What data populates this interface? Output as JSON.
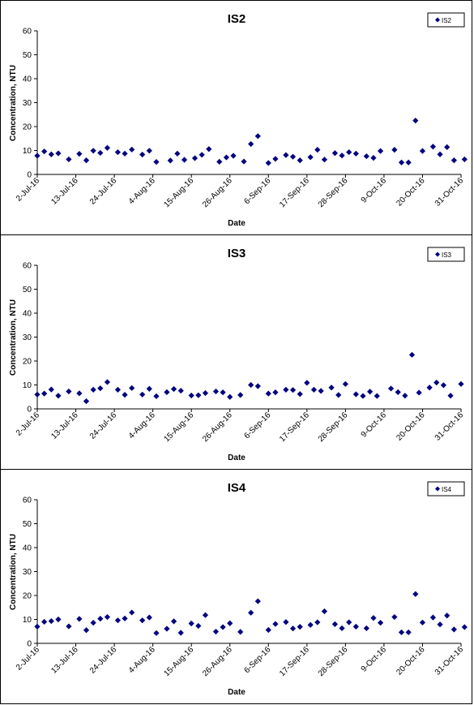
{
  "chart_data": [
    {
      "type": "scatter",
      "title": "IS2",
      "xlabel": "Date",
      "ylabel": "Concentration, NTU",
      "ylim": [
        0,
        60
      ],
      "yticks": [
        "0",
        "10",
        "20",
        "30",
        "40",
        "50",
        "60"
      ],
      "xlim": [
        "2016-07-02",
        "2016-10-31"
      ],
      "xticks": [
        "2-Jul-16",
        "13-Jul-16",
        "24-Jul-16",
        "4-Aug-16",
        "15-Aug-16",
        "26-Aug-16",
        "6-Sep-16",
        "17-Sep-16",
        "28-Sep-16",
        "9-Oct-16",
        "20-Oct-16",
        "31-Oct-16"
      ],
      "grid": false,
      "legend": "top-right",
      "marker_color": "#000080",
      "series": [
        {
          "name": "IS2",
          "points": [
            [
              "2016-07-02",
              7.8
            ],
            [
              "2016-07-04",
              9.6
            ],
            [
              "2016-07-06",
              8.4
            ],
            [
              "2016-07-08",
              8.8
            ],
            [
              "2016-07-11",
              6.3
            ],
            [
              "2016-07-14",
              8.6
            ],
            [
              "2016-07-16",
              5.9
            ],
            [
              "2016-07-18",
              9.9
            ],
            [
              "2016-07-20",
              9.0
            ],
            [
              "2016-07-22",
              11.1
            ],
            [
              "2016-07-25",
              9.3
            ],
            [
              "2016-07-27",
              8.7
            ],
            [
              "2016-07-29",
              10.4
            ],
            [
              "2016-08-01",
              8.3
            ],
            [
              "2016-08-03",
              9.9
            ],
            [
              "2016-08-05",
              5.2
            ],
            [
              "2016-08-09",
              5.8
            ],
            [
              "2016-08-11",
              8.7
            ],
            [
              "2016-08-13",
              6.1
            ],
            [
              "2016-08-16",
              6.8
            ],
            [
              "2016-08-18",
              8.2
            ],
            [
              "2016-08-20",
              10.6
            ],
            [
              "2016-08-23",
              5.3
            ],
            [
              "2016-08-25",
              7.1
            ],
            [
              "2016-08-27",
              7.8
            ],
            [
              "2016-08-30",
              5.4
            ],
            [
              "2016-09-01",
              12.7
            ],
            [
              "2016-09-03",
              16.0
            ],
            [
              "2016-09-06",
              4.8
            ],
            [
              "2016-09-08",
              6.5
            ],
            [
              "2016-09-11",
              8.1
            ],
            [
              "2016-09-13",
              7.4
            ],
            [
              "2016-09-15",
              5.9
            ],
            [
              "2016-09-18",
              7.2
            ],
            [
              "2016-09-20",
              10.3
            ],
            [
              "2016-09-22",
              6.2
            ],
            [
              "2016-09-25",
              8.9
            ],
            [
              "2016-09-27",
              7.9
            ],
            [
              "2016-09-29",
              9.3
            ],
            [
              "2016-10-01",
              8.7
            ],
            [
              "2016-10-04",
              7.6
            ],
            [
              "2016-10-06",
              6.9
            ],
            [
              "2016-10-08",
              9.8
            ],
            [
              "2016-10-12",
              10.3
            ],
            [
              "2016-10-14",
              5.0
            ],
            [
              "2016-10-16",
              5.0
            ],
            [
              "2016-10-18",
              22.5
            ],
            [
              "2016-10-20",
              9.8
            ],
            [
              "2016-10-23",
              11.6
            ],
            [
              "2016-10-25",
              8.4
            ],
            [
              "2016-10-27",
              11.4
            ],
            [
              "2016-10-29",
              5.9
            ],
            [
              "2016-11-01",
              6.3
            ]
          ]
        }
      ]
    },
    {
      "type": "scatter",
      "title": "IS3",
      "xlabel": "Date",
      "ylabel": "Concentration, NTU",
      "ylim": [
        0,
        60
      ],
      "yticks": [
        "0",
        "10",
        "20",
        "30",
        "40",
        "50",
        "60"
      ],
      "xlim": [
        "2016-07-02",
        "2016-10-31"
      ],
      "xticks": [
        "2-Jul-16",
        "13-Jul-16",
        "24-Jul-16",
        "4-Aug-16",
        "15-Aug-16",
        "26-Aug-16",
        "6-Sep-16",
        "17-Sep-16",
        "28-Sep-16",
        "9-Oct-16",
        "20-Oct-16",
        "31-Oct-16"
      ],
      "grid": false,
      "legend": "top-right",
      "marker_color": "#000080",
      "series": [
        {
          "name": "IS3",
          "points": [
            [
              "2016-07-02",
              6.0
            ],
            [
              "2016-07-04",
              6.4
            ],
            [
              "2016-07-06",
              8.1
            ],
            [
              "2016-07-08",
              5.5
            ],
            [
              "2016-07-11",
              7.3
            ],
            [
              "2016-07-14",
              6.5
            ],
            [
              "2016-07-16",
              3.2
            ],
            [
              "2016-07-18",
              8.0
            ],
            [
              "2016-07-20",
              8.6
            ],
            [
              "2016-07-22",
              11.2
            ],
            [
              "2016-07-25",
              8.0
            ],
            [
              "2016-07-27",
              5.9
            ],
            [
              "2016-07-29",
              8.7
            ],
            [
              "2016-08-01",
              6.0
            ],
            [
              "2016-08-03",
              8.4
            ],
            [
              "2016-08-05",
              5.3
            ],
            [
              "2016-08-08",
              7.0
            ],
            [
              "2016-08-10",
              8.3
            ],
            [
              "2016-08-12",
              7.6
            ],
            [
              "2016-08-15",
              5.6
            ],
            [
              "2016-08-17",
              5.7
            ],
            [
              "2016-08-19",
              6.6
            ],
            [
              "2016-08-22",
              7.3
            ],
            [
              "2016-08-24",
              6.9
            ],
            [
              "2016-08-26",
              5.0
            ],
            [
              "2016-08-29",
              5.8
            ],
            [
              "2016-09-01",
              10.0
            ],
            [
              "2016-09-03",
              9.5
            ],
            [
              "2016-09-06",
              6.4
            ],
            [
              "2016-09-08",
              6.9
            ],
            [
              "2016-09-11",
              8.0
            ],
            [
              "2016-09-13",
              7.9
            ],
            [
              "2016-09-15",
              6.2
            ],
            [
              "2016-09-17",
              10.9
            ],
            [
              "2016-09-19",
              8.0
            ],
            [
              "2016-09-21",
              7.5
            ],
            [
              "2016-09-24",
              8.9
            ],
            [
              "2016-09-26",
              5.8
            ],
            [
              "2016-09-28",
              10.4
            ],
            [
              "2016-10-01",
              6.1
            ],
            [
              "2016-10-03",
              5.4
            ],
            [
              "2016-10-05",
              7.2
            ],
            [
              "2016-10-07",
              5.4
            ],
            [
              "2016-10-11",
              8.5
            ],
            [
              "2016-10-13",
              7.0
            ],
            [
              "2016-10-15",
              5.5
            ],
            [
              "2016-10-17",
              22.6
            ],
            [
              "2016-10-19",
              6.8
            ],
            [
              "2016-10-22",
              8.9
            ],
            [
              "2016-10-24",
              11.0
            ],
            [
              "2016-10-26",
              9.9
            ],
            [
              "2016-10-28",
              5.5
            ],
            [
              "2016-10-31",
              10.4
            ]
          ]
        }
      ]
    },
    {
      "type": "scatter",
      "title": "IS4",
      "xlabel": "Date",
      "ylabel": "Concentration, NTU",
      "ylim": [
        0,
        60
      ],
      "yticks": [
        "0",
        "10",
        "20",
        "30",
        "40",
        "50",
        "60"
      ],
      "xlim": [
        "2016-07-02",
        "2016-10-31"
      ],
      "xticks": [
        "2-Jul-16",
        "13-Jul-16",
        "24-Jul-16",
        "4-Aug-16",
        "15-Aug-16",
        "26-Aug-16",
        "6-Sep-16",
        "17-Sep-16",
        "28-Sep-16",
        "9-Oct-16",
        "20-Oct-16",
        "31-Oct-16"
      ],
      "grid": false,
      "legend": "top-right",
      "marker_color": "#000080",
      "series": [
        {
          "name": "IS4",
          "points": [
            [
              "2016-07-02",
              7.0
            ],
            [
              "2016-07-04",
              9.0
            ],
            [
              "2016-07-06",
              9.3
            ],
            [
              "2016-07-08",
              10.0
            ],
            [
              "2016-07-11",
              7.1
            ],
            [
              "2016-07-14",
              10.2
            ],
            [
              "2016-07-16",
              5.5
            ],
            [
              "2016-07-18",
              8.6
            ],
            [
              "2016-07-20",
              10.3
            ],
            [
              "2016-07-22",
              11.0
            ],
            [
              "2016-07-25",
              9.6
            ],
            [
              "2016-07-27",
              10.4
            ],
            [
              "2016-07-29",
              12.9
            ],
            [
              "2016-08-01",
              9.6
            ],
            [
              "2016-08-03",
              10.8
            ],
            [
              "2016-08-05",
              4.3
            ],
            [
              "2016-08-08",
              6.1
            ],
            [
              "2016-08-10",
              9.2
            ],
            [
              "2016-08-12",
              4.4
            ],
            [
              "2016-08-15",
              8.3
            ],
            [
              "2016-08-17",
              7.3
            ],
            [
              "2016-08-19",
              11.8
            ],
            [
              "2016-08-22",
              4.9
            ],
            [
              "2016-08-24",
              6.8
            ],
            [
              "2016-08-26",
              8.4
            ],
            [
              "2016-08-29",
              4.8
            ],
            [
              "2016-09-01",
              12.8
            ],
            [
              "2016-09-03",
              17.6
            ],
            [
              "2016-09-06",
              5.6
            ],
            [
              "2016-09-08",
              8.1
            ],
            [
              "2016-09-11",
              8.9
            ],
            [
              "2016-09-13",
              6.2
            ],
            [
              "2016-09-15",
              6.9
            ],
            [
              "2016-09-18",
              7.7
            ],
            [
              "2016-09-20",
              8.8
            ],
            [
              "2016-09-22",
              13.4
            ],
            [
              "2016-09-25",
              8.0
            ],
            [
              "2016-09-27",
              6.3
            ],
            [
              "2016-09-29",
              8.8
            ],
            [
              "2016-10-01",
              7.0
            ],
            [
              "2016-10-04",
              6.3
            ],
            [
              "2016-10-06",
              10.6
            ],
            [
              "2016-10-08",
              8.6
            ],
            [
              "2016-10-12",
              11.0
            ],
            [
              "2016-10-14",
              4.6
            ],
            [
              "2016-10-16",
              4.6
            ],
            [
              "2016-10-18",
              20.6
            ],
            [
              "2016-10-20",
              8.7
            ],
            [
              "2016-10-23",
              10.8
            ],
            [
              "2016-10-25",
              7.9
            ],
            [
              "2016-10-27",
              11.6
            ],
            [
              "2016-10-29",
              5.8
            ],
            [
              "2016-11-01",
              6.8
            ]
          ]
        }
      ]
    }
  ]
}
